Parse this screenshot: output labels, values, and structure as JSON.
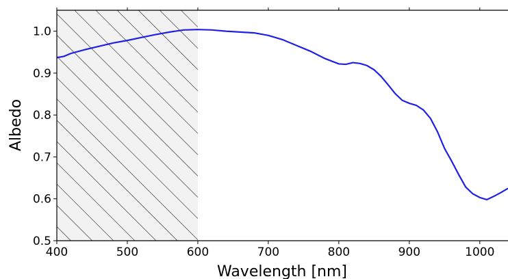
{
  "chart_data": {
    "type": "line",
    "title": "",
    "xlabel": "Wavelength [nm]",
    "ylabel": "Albedo",
    "xlim": [
      400,
      1040
    ],
    "ylim": [
      0.5,
      1.05
    ],
    "xticks": [
      400,
      500,
      600,
      700,
      800,
      900,
      1000
    ],
    "xtick_labels": [
      "400",
      "500",
      "600",
      "700",
      "800",
      "900",
      "1000"
    ],
    "yticks": [
      0.5,
      0.6,
      0.7,
      0.8,
      0.9,
      1.0
    ],
    "ytick_labels": [
      "0.5",
      "0.6",
      "0.7",
      "0.8",
      "0.9",
      "1.0"
    ],
    "grid": false,
    "hatched_region": {
      "x_from": 400,
      "x_to": 600,
      "fill": "#f2f2f2",
      "hatch": "diagonal"
    },
    "series": [
      {
        "color": "#1f1fe6",
        "x": [
          400,
          410,
          420,
          440,
          460,
          480,
          500,
          520,
          540,
          560,
          580,
          600,
          620,
          640,
          660,
          680,
          700,
          720,
          740,
          760,
          780,
          800,
          810,
          820,
          830,
          840,
          850,
          860,
          870,
          880,
          890,
          900,
          910,
          920,
          930,
          940,
          950,
          960,
          970,
          980,
          990,
          1000,
          1010,
          1020,
          1030,
          1040
        ],
        "y": [
          0.937,
          0.94,
          0.947,
          0.956,
          0.964,
          0.972,
          0.978,
          0.985,
          0.992,
          0.998,
          1.003,
          1.004,
          1.003,
          1.0,
          0.998,
          0.996,
          0.99,
          0.98,
          0.966,
          0.952,
          0.935,
          0.922,
          0.921,
          0.925,
          0.923,
          0.918,
          0.908,
          0.892,
          0.872,
          0.851,
          0.835,
          0.828,
          0.823,
          0.812,
          0.792,
          0.76,
          0.72,
          0.69,
          0.658,
          0.628,
          0.612,
          0.603,
          0.598,
          0.606,
          0.615,
          0.625
        ]
      }
    ]
  }
}
